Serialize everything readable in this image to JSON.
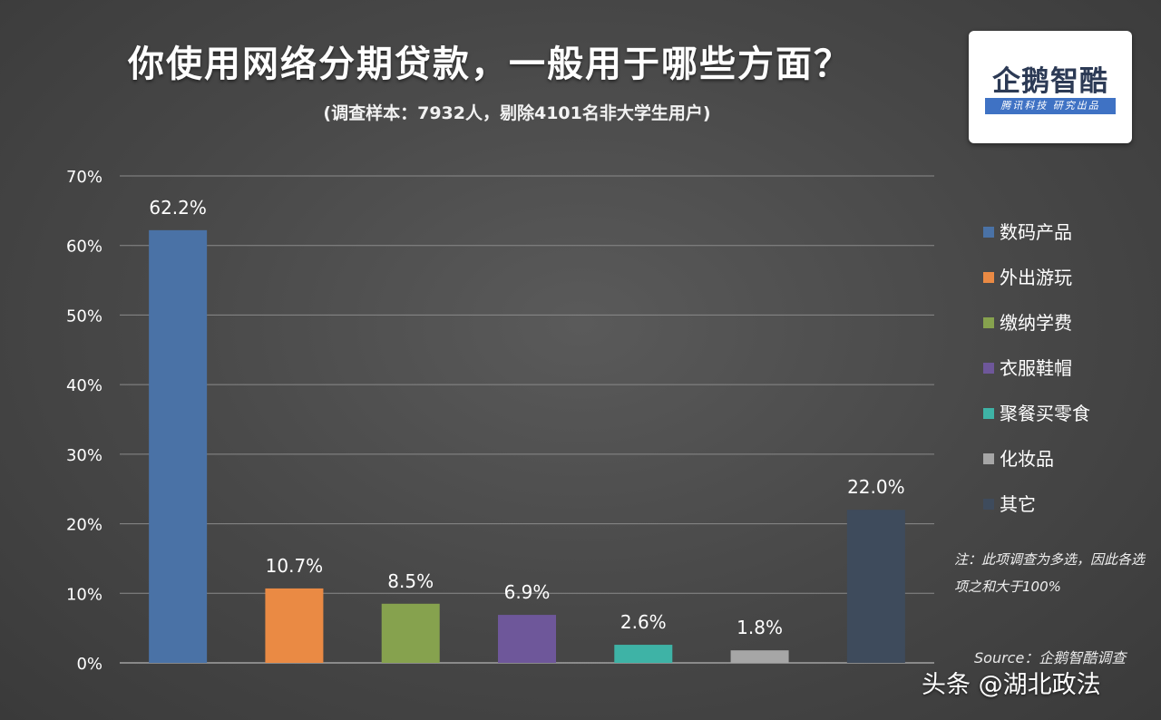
{
  "title": "你使用网络分期贷款，一般用于哪些方面？",
  "subtitle": "(调查样本：7932人，剔除4101名非大学生用户)",
  "logo": {
    "name": "企鹅智酷",
    "tagline": "腾讯科技 研究出品"
  },
  "note": "注：此项调查为多选，因此各选项之和大于100%",
  "source": "Source：企鹅智酷调查",
  "watermark": "头条 @湖北政法",
  "chart_data": {
    "type": "bar",
    "categories": [
      "数码产品",
      "外出游玩",
      "缴纳学费",
      "衣服鞋帽",
      "聚餐买零食",
      "化妆品",
      "其它"
    ],
    "values": [
      62.2,
      10.7,
      8.5,
      6.9,
      2.6,
      1.8,
      22.0
    ],
    "data_labels": [
      "62.2%",
      "10.7%",
      "8.5%",
      "6.9%",
      "2.6%",
      "1.8%",
      "22.0%"
    ],
    "colors": [
      "#4a72a6",
      "#ea8a44",
      "#86a24e",
      "#6e579a",
      "#3eb3a6",
      "#a6a6a6",
      "#3e4b5c"
    ],
    "yticks": [
      "0%",
      "10%",
      "20%",
      "30%",
      "40%",
      "50%",
      "60%",
      "70%"
    ],
    "ylim": [
      0,
      70
    ],
    "grid": true,
    "legend_position": "right"
  }
}
